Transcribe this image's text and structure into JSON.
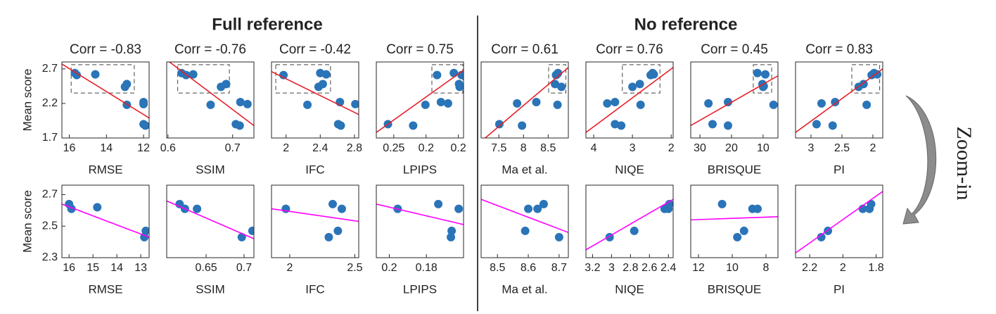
{
  "headings": [
    "Full reference",
    "No reference"
  ],
  "annotation": "Zoom-in",
  "chart_data": [
    {
      "type": "scatter",
      "title": "Corr = -0.83",
      "xlabel": "RMSE",
      "ylabel": "Mean score",
      "color": "#2a74b8",
      "x": [
        15.7,
        15.6,
        14.6,
        13.0,
        12.9,
        12.9,
        12.0,
        12.0,
        12.0,
        11.9
      ],
      "y": [
        2.64,
        2.61,
        2.62,
        2.44,
        2.48,
        2.18,
        2.22,
        2.19,
        1.9,
        1.88
      ],
      "xlim": [
        16.4,
        11.7
      ],
      "ylim": [
        1.7,
        2.8
      ],
      "xticks": [
        16,
        14,
        12
      ],
      "yticks": [
        1.7,
        2.2,
        2.7
      ],
      "fit_line": {
        "color": "#e8202a",
        "values": [
          2.77,
          1.99
        ]
      },
      "zoom_box": {
        "xlim": [
          15.9,
          12.5
        ],
        "ylim": [
          2.35,
          2.76
        ]
      }
    },
    {
      "type": "scatter",
      "title": "Corr = -0.76",
      "xlabel": "SSIM",
      "color": "#2a74b8",
      "x": [
        0.621,
        0.628,
        0.639,
        0.682,
        0.69,
        0.666,
        0.712,
        0.723,
        0.705,
        0.711
      ],
      "y": [
        2.64,
        2.61,
        2.62,
        2.44,
        2.48,
        2.18,
        2.22,
        2.19,
        1.9,
        1.88
      ],
      "xlim": [
        0.598,
        0.733
      ],
      "ylim": [
        1.7,
        2.8
      ],
      "xticks": [
        0.6,
        0.7
      ],
      "fit_line": {
        "color": "#e8202a",
        "values": [
          2.83,
          1.88
        ]
      },
      "zoom_box": {
        "xlim": [
          0.615,
          0.695
        ],
        "ylim": [
          2.35,
          2.76
        ]
      }
    },
    {
      "type": "scatter",
      "title": "Corr = -0.42",
      "xlabel": "IFC",
      "color": "#2a74b8",
      "x": [
        1.97,
        2.4,
        2.47,
        2.38,
        2.43,
        2.25,
        2.63,
        2.81,
        2.61,
        2.64
      ],
      "y": [
        2.61,
        2.64,
        2.62,
        2.44,
        2.48,
        2.18,
        2.22,
        2.19,
        1.9,
        1.88
      ],
      "xlim": [
        1.83,
        2.85
      ],
      "ylim": [
        1.7,
        2.8
      ],
      "xticks": [
        2,
        2.4,
        2.8
      ],
      "fit_line": {
        "color": "#e8202a",
        "values": [
          2.66,
          2.04
        ]
      },
      "zoom_box": {
        "xlim": [
          1.88,
          2.52
        ],
        "ylim": [
          2.35,
          2.76
        ]
      }
    },
    {
      "type": "scatter",
      "title": "Corr = 0.75",
      "xlabel": "LPIPS",
      "color": "#2a74b8",
      "x": [
        0.259,
        0.22,
        0.201,
        0.183,
        0.177,
        0.166,
        0.157,
        0.149,
        0.148,
        0.145
      ],
      "y": [
        1.9,
        1.88,
        2.18,
        2.61,
        2.22,
        2.2,
        2.64,
        2.48,
        2.44,
        2.61
      ],
      "xlim": [
        0.277,
        0.142
      ],
      "ylim": [
        1.7,
        2.8
      ],
      "xticks": [
        0.25,
        0.2,
        {
          "value": 0.15,
          "label": "0.2"
        }
      ],
      "fit_line": {
        "color": "#e8202a",
        "values": [
          1.78,
          2.68
        ]
      },
      "zoom_box": {
        "xlim": [
          0.191,
          0.143
        ],
        "ylim": [
          2.35,
          2.76
        ]
      }
    },
    {
      "type": "scatter",
      "title": "Corr = 0.61",
      "xlabel": "Ma et al.",
      "color": "#2a74b8",
      "x": [
        7.51,
        7.87,
        7.97,
        8.26,
        8.64,
        8.66,
        8.7,
        8.77,
        8.69,
        8.68
      ],
      "y": [
        1.9,
        2.2,
        1.88,
        2.22,
        2.48,
        2.61,
        2.64,
        2.44,
        2.18,
        2.62
      ],
      "xlim": [
        7.14,
        8.91
      ],
      "ylim": [
        1.7,
        2.8
      ],
      "xticks": [
        7.5,
        8,
        8.5
      ],
      "fit_line": {
        "color": "#e8202a",
        "values": [
          1.65,
          2.72
        ]
      },
      "zoom_box": {
        "xlim": [
          8.51,
          8.86
        ],
        "ylim": [
          2.35,
          2.76
        ]
      }
    },
    {
      "type": "scatter",
      "title": "Corr = 0.76",
      "xlabel": "NIQE",
      "color": "#2a74b8",
      "x": [
        3.65,
        3.45,
        3.45,
        3.29,
        3.0,
        2.81,
        2.79,
        2.53,
        2.48,
        2.45
      ],
      "y": [
        2.2,
        2.22,
        1.9,
        1.88,
        2.44,
        2.48,
        2.18,
        2.61,
        2.64,
        2.62
      ],
      "xlim": [
        4.2,
        1.95
      ],
      "ylim": [
        1.7,
        2.8
      ],
      "xticks": [
        4,
        3,
        2
      ],
      "fit_line": {
        "color": "#e8202a",
        "values": [
          1.78,
          2.72
        ]
      },
      "zoom_box": {
        "xlim": [
          3.26,
          2.29
        ],
        "ylim": [
          2.35,
          2.76
        ]
      }
    },
    {
      "type": "scatter",
      "title": "Corr = 0.45",
      "xlabel": "BRISQUE",
      "color": "#2a74b8",
      "x": [
        27.3,
        26.0,
        21.1,
        21.1,
        11.8,
        10.2,
        10.0,
        9.8,
        9.3,
        6.7
      ],
      "y": [
        2.2,
        1.9,
        2.22,
        1.88,
        2.64,
        2.48,
        2.44,
        2.45,
        2.62,
        2.18
      ],
      "xlim": [
        32.9,
        5.3
      ],
      "ylim": [
        1.7,
        2.8
      ],
      "xticks": [
        30,
        20,
        10
      ],
      "fit_line": {
        "color": "#e8202a",
        "values": [
          1.88,
          2.6
        ]
      },
      "zoom_box": {
        "xlim": [
          13.1,
          7.3
        ],
        "ylim": [
          2.35,
          2.76
        ]
      }
    },
    {
      "type": "scatter",
      "title": "Corr = 0.83",
      "xlabel": "PI",
      "color": "#2a74b8",
      "x": [
        2.91,
        2.83,
        2.65,
        2.61,
        2.23,
        2.15,
        2.1,
        2.02,
        1.98,
        1.93
      ],
      "y": [
        1.9,
        2.2,
        1.88,
        2.22,
        2.44,
        2.48,
        2.18,
        2.61,
        2.64,
        2.62
      ],
      "xlim": [
        3.25,
        1.84
      ],
      "ylim": [
        1.7,
        2.8
      ],
      "xticks": [
        3,
        2.5,
        2
      ],
      "fit_line": {
        "color": "#e8202a",
        "values": [
          1.78,
          2.7
        ]
      },
      "zoom_box": {
        "xlim": [
          2.34,
          1.89
        ],
        "ylim": [
          2.35,
          2.76
        ]
      }
    },
    {
      "type": "scatter",
      "xlabel": "RMSE",
      "ylabel": "Mean score",
      "color": "#2a74b8",
      "x": [
        16.0,
        15.9,
        14.82,
        12.85,
        12.79
      ],
      "y": [
        2.64,
        2.61,
        2.62,
        2.43,
        2.47
      ],
      "xlim": [
        16.3,
        12.65
      ],
      "ylim": [
        2.3,
        2.76
      ],
      "xticks": [
        16,
        15,
        14,
        13
      ],
      "yticks": [
        2.3,
        2.5,
        2.7
      ],
      "fit_line": {
        "color": "#ff00ff",
        "values": [
          2.64,
          2.43
        ]
      }
    },
    {
      "type": "scatter",
      "xlabel": "SSIM",
      "color": "#2a74b8",
      "x": [
        0.615,
        0.622,
        0.638,
        0.697,
        0.711
      ],
      "y": [
        2.64,
        2.61,
        2.61,
        2.43,
        2.47
      ],
      "xlim": [
        0.598,
        0.713
      ],
      "ylim": [
        2.3,
        2.76
      ],
      "xticks": [
        0.65,
        0.7
      ],
      "fit_line": {
        "color": "#ff00ff",
        "values": [
          2.66,
          2.42
        ]
      }
    },
    {
      "type": "scatter",
      "xlabel": "IFC",
      "color": "#2a74b8",
      "x": [
        1.97,
        2.33,
        2.3,
        2.37,
        2.4
      ],
      "y": [
        2.61,
        2.64,
        2.43,
        2.47,
        2.61
      ],
      "xlim": [
        1.86,
        2.53
      ],
      "ylim": [
        2.3,
        2.76
      ],
      "xticks": [
        2,
        2.5
      ],
      "fit_line": {
        "color": "#ff00ff",
        "values": [
          2.61,
          2.53
        ]
      }
    },
    {
      "type": "scatter",
      "xlabel": "LPIPS",
      "color": "#2a74b8",
      "x": [
        0.1955,
        0.1736,
        0.1668,
        0.1664,
        0.1626
      ],
      "y": [
        2.61,
        2.64,
        2.43,
        2.47,
        2.61
      ],
      "xlim": [
        0.207,
        0.16
      ],
      "ylim": [
        2.3,
        2.76
      ],
      "xticks": [
        0.2,
        0.18
      ],
      "fit_line": {
        "color": "#ff00ff",
        "values": [
          2.64,
          2.51
        ]
      }
    },
    {
      "type": "scatter",
      "xlabel": "Ma et al.",
      "color": "#2a74b8",
      "x": [
        8.59,
        8.6,
        8.63,
        8.65,
        8.7
      ],
      "y": [
        2.47,
        2.61,
        2.61,
        2.64,
        2.43
      ],
      "xlim": [
        8.447,
        8.73
      ],
      "ylim": [
        2.3,
        2.76
      ],
      "xticks": [
        8.5,
        8.6,
        8.7
      ],
      "fit_line": {
        "color": "#ff00ff",
        "values": [
          2.67,
          2.46
        ]
      }
    },
    {
      "type": "scatter",
      "xlabel": "NIQE",
      "color": "#2a74b8",
      "x": [
        3.02,
        2.76,
        2.44,
        2.4,
        2.39
      ],
      "y": [
        2.43,
        2.47,
        2.61,
        2.61,
        2.64
      ],
      "xlim": [
        3.27,
        2.35
      ],
      "ylim": [
        2.3,
        2.76
      ],
      "xticks": [
        3.2,
        3,
        2.8,
        2.6,
        2.4
      ],
      "fit_line": {
        "color": "#ff00ff",
        "values": [
          2.35,
          2.67
        ]
      }
    },
    {
      "type": "scatter",
      "xlabel": "BRISQUE",
      "color": "#2a74b8",
      "x": [
        10.6,
        9.3,
        9.7,
        8.8,
        8.5
      ],
      "y": [
        2.64,
        2.47,
        2.43,
        2.61,
        2.61
      ],
      "xlim": [
        12.46,
        7.29
      ],
      "ylim": [
        2.3,
        2.76
      ],
      "xticks": [
        12,
        10,
        8
      ],
      "fit_line": {
        "color": "#ff00ff",
        "values": [
          2.54,
          2.56
        ]
      }
    },
    {
      "type": "scatter",
      "xlabel": "PI",
      "color": "#2a74b8",
      "x": [
        2.13,
        2.09,
        1.88,
        1.84,
        1.83
      ],
      "y": [
        2.43,
        2.47,
        2.61,
        2.61,
        2.64
      ],
      "xlim": [
        2.285,
        1.76
      ],
      "ylim": [
        2.3,
        2.76
      ],
      "xticks": [
        2.2,
        2,
        1.8
      ],
      "fit_line": {
        "color": "#ff00ff",
        "values": [
          2.33,
          2.72
        ]
      }
    }
  ]
}
